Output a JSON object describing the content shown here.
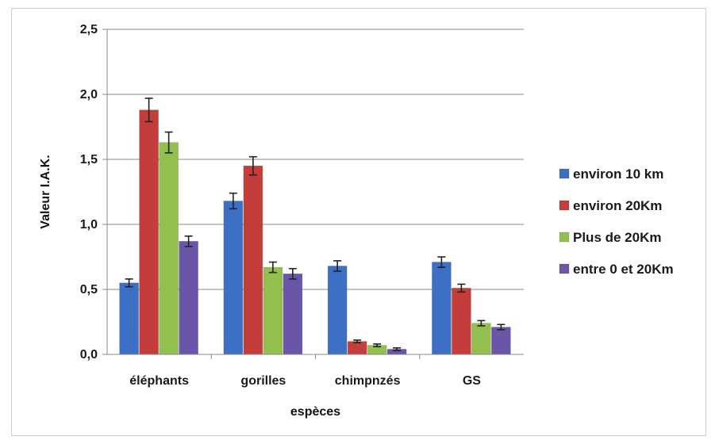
{
  "chart_data": {
    "type": "bar",
    "categories": [
      "éléphants",
      "gorilles",
      "chimpnzés",
      "GS"
    ],
    "series": [
      {
        "name": "environ 10 km",
        "color": "#3d6fc4",
        "values": [
          0.55,
          1.18,
          0.68,
          0.71
        ],
        "errors": [
          0.03,
          0.06,
          0.04,
          0.04
        ]
      },
      {
        "name": "environ 20Km",
        "color": "#c43d3a",
        "values": [
          1.88,
          1.45,
          0.1,
          0.51
        ],
        "errors": [
          0.09,
          0.07,
          0.01,
          0.03
        ]
      },
      {
        "name": "Plus de 20Km",
        "color": "#93bf4e",
        "values": [
          1.63,
          0.67,
          0.07,
          0.24
        ],
        "errors": [
          0.08,
          0.04,
          0.01,
          0.02
        ]
      },
      {
        "name": "entre 0 et 20Km",
        "color": "#6a55a8",
        "values": [
          0.87,
          0.62,
          0.04,
          0.21
        ],
        "errors": [
          0.04,
          0.04,
          0.01,
          0.02
        ]
      }
    ],
    "yticks": [
      "0,0",
      "0,5",
      "1,0",
      "1,5",
      "2,0",
      "2,5"
    ],
    "ylim": [
      0,
      2.5
    ],
    "xlabel": "espèces",
    "ylabel": "Valeur I.A.K.",
    "grid": true,
    "legend_position": "right"
  }
}
